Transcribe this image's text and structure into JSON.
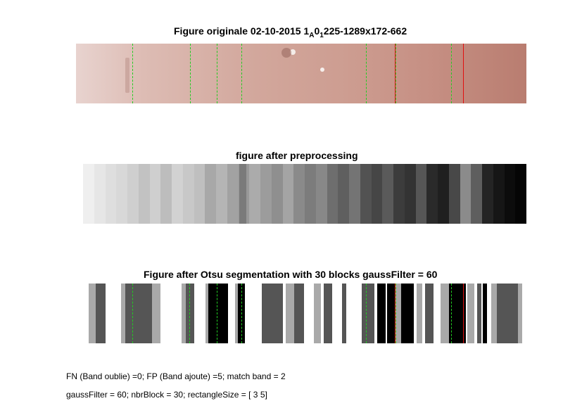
{
  "title1": {
    "prefix": "Figure originale 02-10-2015  1",
    "sub1": "A",
    "mid": "0",
    "sub2": "1",
    "suffix": "225-1289x172-662"
  },
  "title2": "figure after preprocessing",
  "title3": "Figure after Otsu segmentation with 30 blocks gaussFilter = 60",
  "caption1": "FN (Band oublie) =0; FP (Band ajoute) =5; match band = 2",
  "caption2": "gaussFilter = 60; nbrBlock = 30; rectangleSize = [ 3  5]",
  "colors": {
    "green_band": "#22cc22",
    "red_band": "#e01010",
    "strip_base": "#c9958a"
  }
}
